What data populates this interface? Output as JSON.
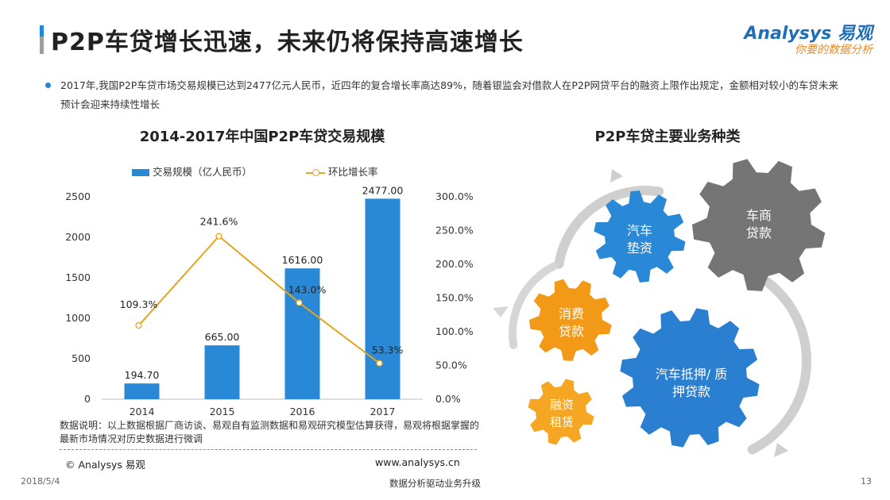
{
  "header": {
    "title": "P2P车贷增长迅速，未来仍将保持高速增长",
    "logo_main": "Analysys 易观",
    "logo_sub": "你要的数据分析"
  },
  "summary": {
    "text": "2017年,我国P2P车贷市场交易规模已达到2477亿元人民币，近四年的复合增长率高达89%，随着银监会对借款人在P2P网贷平台的融资上限作出规定，金额相对较小的车贷未来预计会迎来持续性增长"
  },
  "chart_data": {
    "type": "bar",
    "title": "2014-2017年中国P2P车贷交易规模",
    "categories": [
      "2014",
      "2015",
      "2016",
      "2017"
    ],
    "series": [
      {
        "name": "交易规模（亿人民币）",
        "type": "bar",
        "axis": "left",
        "values": [
          194.7,
          665.0,
          1616.0,
          2477.0
        ],
        "labels": [
          "194.70",
          "665.00",
          "1616.00",
          "2477.00"
        ],
        "color": "#2a89d6"
      },
      {
        "name": "环比增长率",
        "type": "line",
        "axis": "right",
        "values": [
          109.3,
          241.6,
          143.0,
          53.3
        ],
        "labels": [
          "109.3%",
          "241.6%",
          "143.0%",
          "53.3%"
        ],
        "color": "#e2a520"
      }
    ],
    "ylim": [
      0,
      2500
    ],
    "yticks": [
      "0",
      "500",
      "1000",
      "1500",
      "2000",
      "2500"
    ],
    "y2lim": [
      0,
      300
    ],
    "y2ticks": [
      "0.0%",
      "50.0%",
      "100.0%",
      "150.0%",
      "200.0%",
      "250.0%",
      "300.0%"
    ],
    "grid": false,
    "legend_position": "top"
  },
  "note": {
    "text": "数据说明：以上数据根据厂商访谈、易观自有监测数据和易观研究模型估算获得，易观将根据掌握的最新市场情况对历史数据进行微调"
  },
  "source": {
    "copyright": "© Analysys 易观",
    "website": "www.analysys.cn"
  },
  "right_panel": {
    "title": "P2P车贷主要业务种类",
    "gears": [
      {
        "label_line1": "汽车",
        "label_line2": "垫资",
        "color": "#2a89d6"
      },
      {
        "label_line1": "车商",
        "label_line2": "贷款",
        "color": "#757575"
      },
      {
        "label_line1": "消费",
        "label_line2": "贷款",
        "color": "#f29a17"
      },
      {
        "label_line1": "汽车抵押/ 质",
        "label_line2": "押贷款",
        "color": "#2a7fd0"
      },
      {
        "label_line1": "融资",
        "label_line2": "租赁",
        "color": "#f5a623"
      }
    ]
  },
  "footer": {
    "date": "2018/5/4",
    "tagline": "数据分析驱动业务升级",
    "page": "13"
  }
}
